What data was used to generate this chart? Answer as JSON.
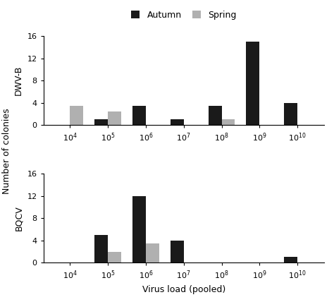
{
  "categories": [
    4,
    5,
    6,
    7,
    8,
    9,
    10
  ],
  "tick_labels": [
    "$10^4$",
    "$10^5$",
    "$10^6$",
    "$10^7$",
    "$10^8$",
    "$10^9$",
    "$10^{10}$"
  ],
  "dwvb_autumn": [
    0,
    1,
    3.5,
    1,
    3.5,
    15,
    4
  ],
  "dwvb_spring": [
    3.5,
    2.5,
    0,
    0,
    1,
    0,
    0
  ],
  "bqcv_autumn": [
    0,
    5,
    12,
    4,
    0,
    0,
    1
  ],
  "bqcv_spring": [
    0,
    2,
    3.5,
    0,
    0,
    0,
    0
  ],
  "autumn_color": "#1a1a1a",
  "spring_color": "#b0b0b0",
  "bar_width": 0.35,
  "ylim": [
    0,
    16
  ],
  "yticks": [
    0,
    4,
    8,
    12,
    16
  ],
  "shared_ylabel": "Number of colonies",
  "xlabel": "Virus load (pooled)",
  "top_ylabel": "DWV-B",
  "bot_ylabel": "BQCV",
  "legend_labels": [
    "Autumn",
    "Spring"
  ],
  "label_fontsize": 9,
  "tick_fontsize": 8,
  "legend_fontsize": 9,
  "ylabel_fontsize": 9
}
